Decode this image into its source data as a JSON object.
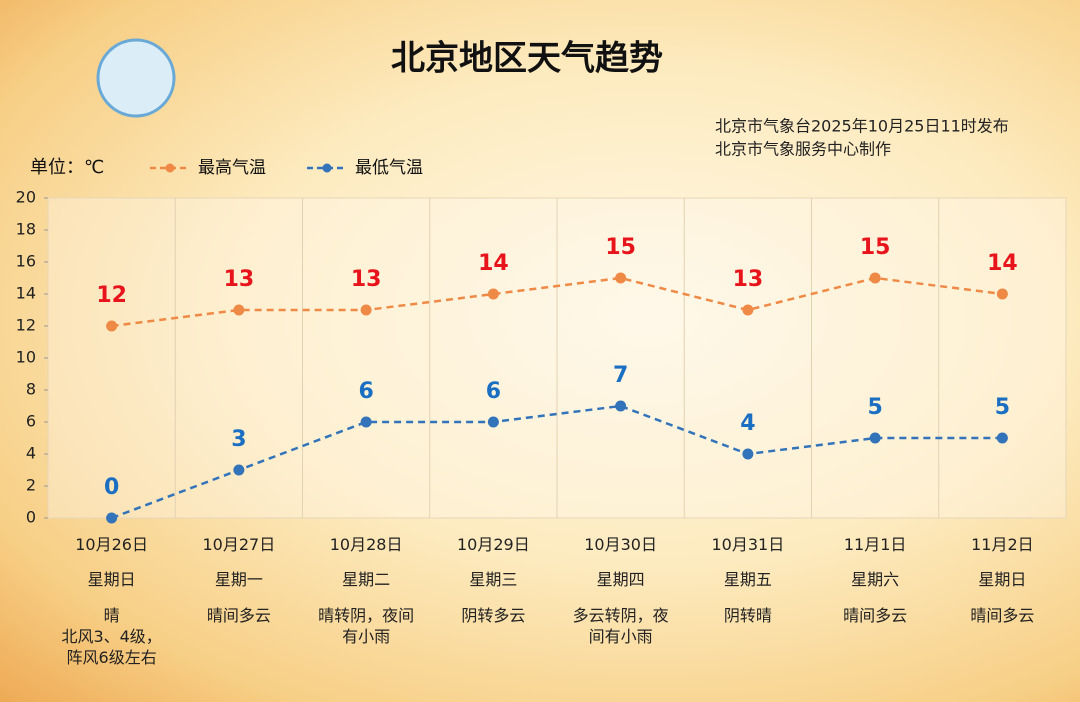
{
  "chart_data": {
    "type": "line",
    "title": "北京地区天气趋势",
    "source": [
      "北京市气象台2025年10月25日11时发布",
      "北京市气象服务中心制作"
    ],
    "unit": "单位：℃",
    "categories": [
      "10月26日",
      "10月27日",
      "10月28日",
      "10月29日",
      "10月30日",
      "10月31日",
      "11月1日",
      "11月2日"
    ],
    "weekdays": [
      "星期日",
      "星期一",
      "星期二",
      "星期三",
      "星期四",
      "星期五",
      "星期六",
      "星期日"
    ],
    "weather": [
      "晴",
      "晴间多云",
      "晴转阴，夜间有小雨",
      "阴转多云",
      "多云转阴，夜间有小雨",
      "阴转晴",
      "晴间多云",
      "晴间多云"
    ],
    "wind": "北风3、4级，阵风6级左右",
    "series": [
      {
        "name": "最高气温",
        "color": "#ee8a45",
        "label_color": "#e8141b",
        "values": [
          12,
          13,
          13,
          14,
          15,
          13,
          15,
          14
        ]
      },
      {
        "name": "最低气温",
        "color": "#3273b9",
        "label_color": "#1b6fc2",
        "values": [
          0,
          3,
          6,
          6,
          7,
          4,
          5,
          5
        ]
      }
    ],
    "ylim": [
      0,
      20
    ],
    "yticks": [
      0,
      2,
      4,
      6,
      8,
      10,
      12,
      14,
      16,
      18,
      20
    ]
  }
}
